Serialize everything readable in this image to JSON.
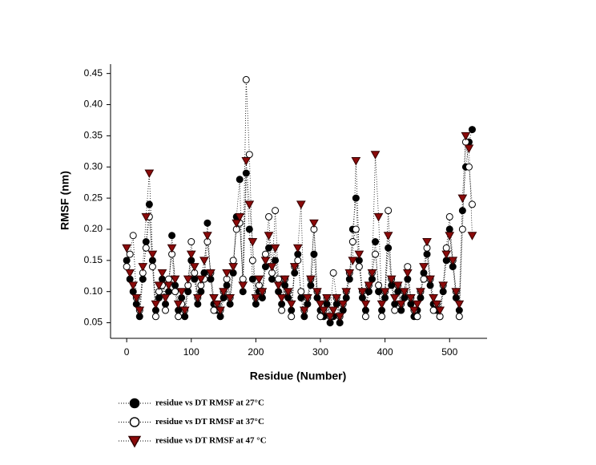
{
  "chart_data": {
    "type": "scatter",
    "xlabel": "Residue (Number)",
    "ylabel": "RMSF (nm)",
    "xlim": [
      -25,
      558
    ],
    "ylim": [
      0.025,
      0.465
    ],
    "xticks": [
      0,
      100,
      200,
      300,
      400,
      500
    ],
    "yticks": [
      0.05,
      {
        "value": 0.1,
        "label": "0.10"
      },
      0.15,
      {
        "value": 0.2,
        "label": "0.20"
      },
      0.25,
      {
        "value": 0.3,
        "label": "0.30"
      },
      0.35,
      {
        "value": 0.4,
        "label": "0.40"
      },
      0.45
    ],
    "x": [
      0,
      5,
      10,
      15,
      20,
      25,
      30,
      35,
      40,
      45,
      50,
      55,
      60,
      65,
      70,
      75,
      80,
      85,
      90,
      95,
      100,
      105,
      110,
      115,
      120,
      125,
      130,
      135,
      140,
      145,
      150,
      155,
      160,
      165,
      170,
      175,
      180,
      185,
      190,
      195,
      200,
      205,
      210,
      215,
      220,
      225,
      230,
      235,
      240,
      245,
      250,
      255,
      260,
      265,
      270,
      275,
      280,
      285,
      290,
      295,
      300,
      305,
      310,
      315,
      320,
      325,
      330,
      335,
      340,
      345,
      350,
      355,
      360,
      365,
      370,
      375,
      380,
      385,
      390,
      395,
      400,
      405,
      410,
      415,
      420,
      425,
      430,
      435,
      440,
      445,
      450,
      455,
      460,
      465,
      470,
      475,
      480,
      485,
      490,
      495,
      500,
      505,
      510,
      515,
      520,
      525,
      530,
      535
    ],
    "series": [
      {
        "name": "residue vs DT RMSF at 27°C",
        "color": "#000000",
        "marker": "filled-circle",
        "values": [
          0.15,
          0.12,
          0.1,
          0.08,
          0.06,
          0.12,
          0.18,
          0.24,
          0.15,
          0.07,
          0.09,
          0.12,
          0.08,
          0.1,
          0.19,
          0.11,
          0.07,
          0.09,
          0.06,
          0.1,
          0.15,
          0.12,
          0.08,
          0.1,
          0.13,
          0.21,
          0.12,
          0.08,
          0.07,
          0.06,
          0.09,
          0.11,
          0.08,
          0.13,
          0.22,
          0.28,
          0.1,
          0.29,
          0.2,
          0.12,
          0.08,
          0.1,
          0.09,
          0.14,
          0.17,
          0.12,
          0.15,
          0.1,
          0.08,
          0.11,
          0.09,
          0.07,
          0.13,
          0.16,
          0.09,
          0.06,
          0.08,
          0.11,
          0.16,
          0.09,
          0.07,
          0.06,
          0.08,
          0.05,
          0.06,
          0.08,
          0.05,
          0.07,
          0.09,
          0.12,
          0.2,
          0.25,
          0.15,
          0.09,
          0.07,
          0.1,
          0.12,
          0.18,
          0.1,
          0.07,
          0.09,
          0.17,
          0.11,
          0.08,
          0.1,
          0.07,
          0.09,
          0.12,
          0.08,
          0.06,
          0.07,
          0.09,
          0.13,
          0.16,
          0.11,
          0.08,
          0.07,
          0.06,
          0.1,
          0.15,
          0.2,
          0.14,
          0.09,
          0.07,
          0.23,
          0.3,
          0.34,
          0.36
        ]
      },
      {
        "name": "residue vs DT RMSF at 37°C",
        "color": "#ffffff",
        "marker": "open-circle",
        "values": [
          0.14,
          0.16,
          0.19,
          0.09,
          0.07,
          0.13,
          0.17,
          0.22,
          0.14,
          0.06,
          0.1,
          0.11,
          0.07,
          0.12,
          0.16,
          0.1,
          0.06,
          0.08,
          0.07,
          0.11,
          0.18,
          0.13,
          0.09,
          0.11,
          0.12,
          0.18,
          0.13,
          0.07,
          0.08,
          0.07,
          0.1,
          0.12,
          0.09,
          0.15,
          0.2,
          0.21,
          0.12,
          0.44,
          0.32,
          0.15,
          0.09,
          0.11,
          0.1,
          0.16,
          0.22,
          0.13,
          0.23,
          0.12,
          0.07,
          0.12,
          0.1,
          0.06,
          0.14,
          0.15,
          0.1,
          0.07,
          0.09,
          0.12,
          0.2,
          0.1,
          0.06,
          0.07,
          0.09,
          0.06,
          0.13,
          0.09,
          0.06,
          0.08,
          0.1,
          0.13,
          0.18,
          0.2,
          0.14,
          0.1,
          0.06,
          0.11,
          0.13,
          0.16,
          0.11,
          0.06,
          0.1,
          0.23,
          0.12,
          0.07,
          0.11,
          0.08,
          0.1,
          0.14,
          0.09,
          0.07,
          0.06,
          0.1,
          0.12,
          0.17,
          0.12,
          0.07,
          0.08,
          0.06,
          0.11,
          0.17,
          0.22,
          0.15,
          0.1,
          0.06,
          0.2,
          0.34,
          0.3,
          0.24
        ]
      },
      {
        "name": "residue vs DT RMSF at 47 °C",
        "color": "#8b0a0a",
        "marker": "triangle-down",
        "values": [
          0.17,
          0.13,
          0.11,
          0.09,
          0.07,
          0.14,
          0.22,
          0.29,
          0.16,
          0.08,
          0.11,
          0.13,
          0.09,
          0.11,
          0.17,
          0.12,
          0.08,
          0.1,
          0.07,
          0.12,
          0.16,
          0.14,
          0.09,
          0.12,
          0.15,
          0.19,
          0.13,
          0.09,
          0.08,
          0.07,
          0.1,
          0.13,
          0.09,
          0.14,
          0.21,
          0.22,
          0.11,
          0.31,
          0.24,
          0.18,
          0.09,
          0.12,
          0.1,
          0.15,
          0.19,
          0.14,
          0.17,
          0.11,
          0.09,
          0.12,
          0.1,
          0.08,
          0.14,
          0.17,
          0.24,
          0.07,
          0.09,
          0.12,
          0.21,
          0.1,
          0.08,
          0.07,
          0.09,
          0.06,
          0.07,
          0.09,
          0.06,
          0.08,
          0.1,
          0.13,
          0.15,
          0.31,
          0.16,
          0.1,
          0.08,
          0.11,
          0.13,
          0.32,
          0.22,
          0.08,
          0.1,
          0.19,
          0.12,
          0.09,
          0.11,
          0.08,
          0.1,
          0.13,
          0.09,
          0.07,
          0.08,
          0.1,
          0.14,
          0.18,
          0.12,
          0.09,
          0.08,
          0.07,
          0.11,
          0.16,
          0.19,
          0.15,
          0.1,
          0.08,
          0.25,
          0.35,
          0.33,
          0.19
        ]
      }
    ]
  }
}
